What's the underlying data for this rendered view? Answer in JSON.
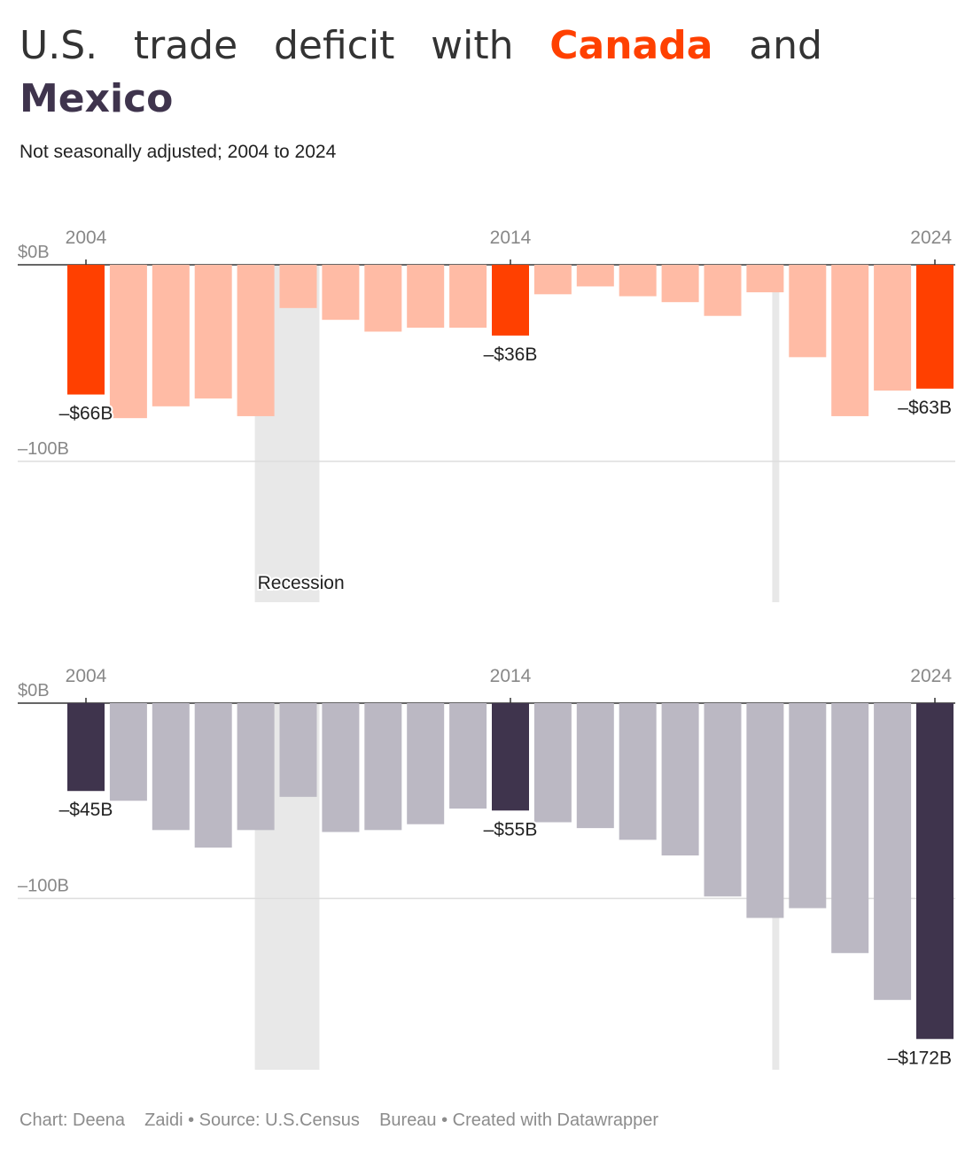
{
  "title": {
    "words": [
      "U.S.",
      "trade",
      "deficit",
      "with",
      "Canada",
      "and"
    ],
    "highlight_canada": "Canada",
    "highlight_mexico": "Mexico",
    "canada_color": "#ff4000",
    "mexico_color": "#3f344d"
  },
  "subtitle": "Not seasonally adjusted; 2004 to 2024",
  "footer": "Chart: Deena    Zaidi • Source: U.S.Census    Bureau • Created with Datawrapper",
  "chart_data": [
    {
      "type": "bar",
      "country": "Canada",
      "x": [
        2004,
        2005,
        2006,
        2007,
        2008,
        2009,
        2010,
        2011,
        2012,
        2013,
        2014,
        2015,
        2016,
        2017,
        2018,
        2019,
        2020,
        2021,
        2022,
        2023,
        2024
      ],
      "values": [
        -66,
        -78,
        -72,
        -68,
        -77,
        -22,
        -28,
        -34,
        -32,
        -32,
        -36,
        -15,
        -11,
        -16,
        -19,
        -26,
        -14,
        -47,
        -77,
        -64,
        -63
      ],
      "highlight_years": [
        2004,
        2014,
        2024
      ],
      "x_ticks": [
        "2004",
        "2014",
        "2024"
      ],
      "y_ticks": [
        {
          "value": 0,
          "label": "$0B"
        },
        {
          "value": -100,
          "label": "–100B"
        }
      ],
      "ylim": [
        -170,
        0
      ],
      "value_labels": [
        {
          "year": 2004,
          "label": "–$66B"
        },
        {
          "year": 2014,
          "label": "–$36B"
        },
        {
          "year": 2024,
          "label": "–$63B"
        }
      ],
      "highlight_color": "#ff4000",
      "bar_color": "#ffbba5",
      "recession_label": "Recession"
    },
    {
      "type": "bar",
      "country": "Mexico",
      "x": [
        2004,
        2005,
        2006,
        2007,
        2008,
        2009,
        2010,
        2011,
        2012,
        2013,
        2014,
        2015,
        2016,
        2017,
        2018,
        2019,
        2020,
        2021,
        2022,
        2023,
        2024
      ],
      "values": [
        -45,
        -50,
        -65,
        -74,
        -65,
        -48,
        -66,
        -65,
        -62,
        -54,
        -55,
        -61,
        -64,
        -70,
        -78,
        -99,
        -110,
        -105,
        -128,
        -152,
        -172
      ],
      "highlight_years": [
        2004,
        2014,
        2024
      ],
      "x_ticks": [
        "2004",
        "2014",
        "2024"
      ],
      "y_ticks": [
        {
          "value": 0,
          "label": "$0B"
        },
        {
          "value": -100,
          "label": "–100B"
        }
      ],
      "ylim": [
        -187,
        0
      ],
      "value_labels": [
        {
          "year": 2004,
          "label": "–$45B"
        },
        {
          "year": 2014,
          "label": "–$55B"
        },
        {
          "year": 2024,
          "label": "–$172B"
        }
      ],
      "highlight_color": "#3f344d",
      "bar_color": "#bbb8c3"
    }
  ]
}
